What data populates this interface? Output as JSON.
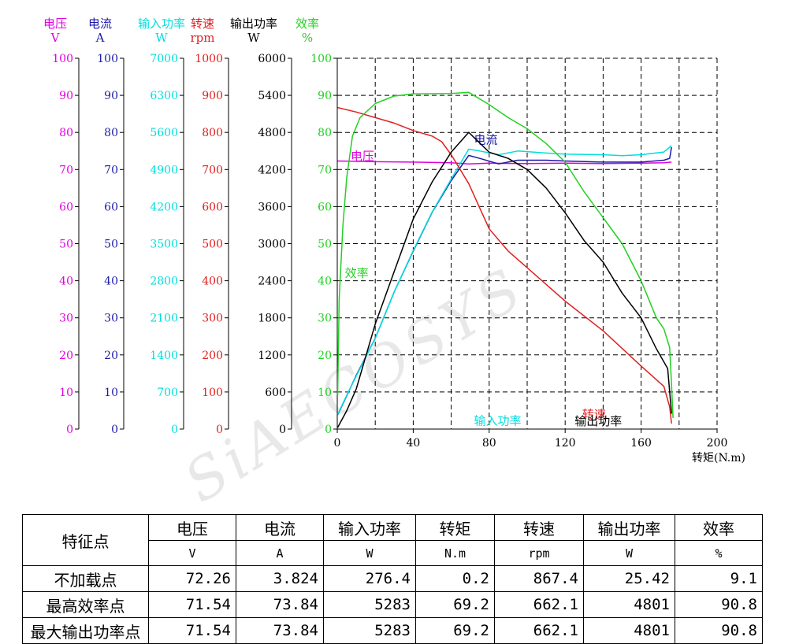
{
  "watermark": "SiAECOSYS",
  "chart_data": {
    "type": "line",
    "x": {
      "label": "转矩(N.m)",
      "range": [
        0,
        200
      ],
      "ticks": [
        "0",
        "40",
        "80",
        "120",
        "160",
        "200"
      ]
    },
    "axes": [
      {
        "id": "voltage",
        "name": "电压",
        "unit": "V",
        "color": "#e000e0",
        "range": [
          0,
          100
        ],
        "ticks": [
          "0",
          "10",
          "20",
          "30",
          "40",
          "50",
          "60",
          "70",
          "80",
          "90",
          "100"
        ]
      },
      {
        "id": "current",
        "name": "电流",
        "unit": "A",
        "color": "#1a1aa8",
        "range": [
          0,
          100
        ],
        "ticks": [
          "0",
          "10",
          "20",
          "30",
          "40",
          "50",
          "60",
          "70",
          "80",
          "90",
          "100"
        ]
      },
      {
        "id": "input_power",
        "name": "输入功率",
        "unit": "W",
        "color": "#00dede",
        "range": [
          0,
          7000
        ],
        "ticks": [
          "0",
          "700",
          "1400",
          "2100",
          "2800",
          "3500",
          "4200",
          "4900",
          "5600",
          "6300",
          "7000"
        ]
      },
      {
        "id": "speed",
        "name": "转速",
        "unit": "rpm",
        "color": "#e02020",
        "range": [
          0,
          1000
        ],
        "ticks": [
          "0",
          "100",
          "200",
          "300",
          "400",
          "500",
          "600",
          "700",
          "800",
          "900",
          "1000"
        ]
      },
      {
        "id": "output_power",
        "name": "输出功率",
        "unit": "W",
        "color": "#000000",
        "range": [
          0,
          6000
        ],
        "ticks": [
          "0",
          "600",
          "1200",
          "1800",
          "2400",
          "3000",
          "3600",
          "4200",
          "4800",
          "5400",
          "6000"
        ]
      },
      {
        "id": "efficiency",
        "name": "效率",
        "unit": "%",
        "color": "#22d022",
        "range": [
          0,
          100
        ],
        "ticks": [
          "0",
          "10",
          "20",
          "30",
          "40",
          "50",
          "60",
          "70",
          "80",
          "90",
          "100"
        ]
      }
    ],
    "series": [
      {
        "name": "电压",
        "axis": "voltage",
        "color": "#e000e0",
        "label_at": [
          7,
          72.5
        ],
        "points": [
          [
            0.2,
            72.3
          ],
          [
            10,
            72.2
          ],
          [
            20,
            72.1
          ],
          [
            40,
            72.0
          ],
          [
            60,
            71.8
          ],
          [
            69.2,
            71.5
          ],
          [
            80,
            71.7
          ],
          [
            100,
            71.6
          ],
          [
            120,
            71.7
          ],
          [
            140,
            71.6
          ],
          [
            160,
            71.7
          ],
          [
            172,
            71.8
          ],
          [
            176,
            72.0
          ]
        ]
      },
      {
        "name": "电流",
        "axis": "current",
        "color": "#1a1aa8",
        "label_at": [
          72,
          77
        ],
        "points": [
          [
            0.2,
            3.8
          ],
          [
            5,
            9
          ],
          [
            10,
            14.5
          ],
          [
            20,
            24.5
          ],
          [
            30,
            37
          ],
          [
            40,
            48
          ],
          [
            50,
            58.5
          ],
          [
            60,
            67
          ],
          [
            69.2,
            73.8
          ],
          [
            75,
            73
          ],
          [
            85,
            71.5
          ],
          [
            95,
            72.5
          ],
          [
            110,
            72.5
          ],
          [
            120,
            72.3
          ],
          [
            140,
            72
          ],
          [
            160,
            72
          ],
          [
            172,
            72.5
          ],
          [
            175,
            73
          ],
          [
            176,
            76
          ]
        ]
      },
      {
        "name": "输入功率",
        "axis": "input_power",
        "color": "#00dede",
        "label_at": [
          72,
          79
        ],
        "points": [
          [
            0.2,
            276
          ],
          [
            5,
            640
          ],
          [
            10,
            1000
          ],
          [
            20,
            1710
          ],
          [
            30,
            2590
          ],
          [
            40,
            3370
          ],
          [
            50,
            4100
          ],
          [
            60,
            4720
          ],
          [
            69.2,
            5283
          ],
          [
            75,
            5250
          ],
          [
            85,
            5180
          ],
          [
            95,
            5250
          ],
          [
            110,
            5210
          ],
          [
            120,
            5190
          ],
          [
            140,
            5180
          ],
          [
            150,
            5160
          ],
          [
            160,
            5180
          ],
          [
            172,
            5230
          ],
          [
            176,
            5350
          ]
        ]
      },
      {
        "name": "转速",
        "axis": "speed",
        "color": "#e02020",
        "label_at": [
          129,
          28.5
        ],
        "points": [
          [
            0.2,
            867
          ],
          [
            10,
            855
          ],
          [
            20,
            840
          ],
          [
            30,
            825
          ],
          [
            40,
            805
          ],
          [
            50,
            790
          ],
          [
            55,
            775
          ],
          [
            60,
            740
          ],
          [
            69.2,
            662
          ],
          [
            80,
            540
          ],
          [
            90,
            480
          ],
          [
            100,
            435
          ],
          [
            120,
            345
          ],
          [
            140,
            265
          ],
          [
            160,
            170
          ],
          [
            172,
            115
          ],
          [
            175,
            60
          ],
          [
            176,
            15
          ]
        ]
      },
      {
        "name": "输出功率",
        "axis": "output_power",
        "color": "#000000",
        "label_at": [
          125,
          62
        ],
        "points": [
          [
            0.2,
            25
          ],
          [
            5,
            300
          ],
          [
            10,
            650
          ],
          [
            20,
            1700
          ],
          [
            30,
            2550
          ],
          [
            40,
            3400
          ],
          [
            50,
            4000
          ],
          [
            60,
            4480
          ],
          [
            69.2,
            4801
          ],
          [
            80,
            4480
          ],
          [
            90,
            4380
          ],
          [
            100,
            4200
          ],
          [
            110,
            3900
          ],
          [
            120,
            3500
          ],
          [
            130,
            3050
          ],
          [
            140,
            2700
          ],
          [
            150,
            2200
          ],
          [
            160,
            1800
          ],
          [
            168,
            1300
          ],
          [
            174,
            980
          ],
          [
            176,
            250
          ]
        ]
      },
      {
        "name": "效率",
        "axis": "efficiency",
        "color": "#22d022",
        "label_at": [
          4,
          41
        ],
        "points": [
          [
            0.2,
            9.1
          ],
          [
            1,
            35
          ],
          [
            3,
            55
          ],
          [
            5,
            68
          ],
          [
            8,
            79
          ],
          [
            12,
            84
          ],
          [
            20,
            87.8
          ],
          [
            30,
            89.8
          ],
          [
            40,
            90.4
          ],
          [
            60,
            90.5
          ],
          [
            69.2,
            90.8
          ],
          [
            80,
            87.5
          ],
          [
            90,
            84
          ],
          [
            100,
            81
          ],
          [
            110,
            77
          ],
          [
            120,
            72
          ],
          [
            130,
            64
          ],
          [
            140,
            57
          ],
          [
            150,
            50
          ],
          [
            160,
            40
          ],
          [
            168,
            30
          ],
          [
            172,
            27
          ],
          [
            175,
            22
          ],
          [
            176,
            12
          ],
          [
            176.8,
            3
          ]
        ]
      }
    ]
  },
  "table": {
    "header_first": "特征点",
    "headers": [
      "电压",
      "电流",
      "输入功率",
      "转矩",
      "转速",
      "输出功率",
      "效率"
    ],
    "units": [
      "V",
      "A",
      "W",
      "N.m",
      "rpm",
      "W",
      "%"
    ],
    "rows": [
      {
        "label": "不加载点",
        "values": [
          "72.26",
          "3.824",
          "276.4",
          "0.2",
          "867.4",
          "25.42",
          "9.1"
        ]
      },
      {
        "label": "最高效率点",
        "values": [
          "71.54",
          "73.84",
          "5283",
          "69.2",
          "662.1",
          "4801",
          "90.8"
        ]
      },
      {
        "label": "最大输出功率点",
        "values": [
          "71.54",
          "73.84",
          "5283",
          "69.2",
          "662.1",
          "4801",
          "90.8"
        ]
      }
    ]
  }
}
